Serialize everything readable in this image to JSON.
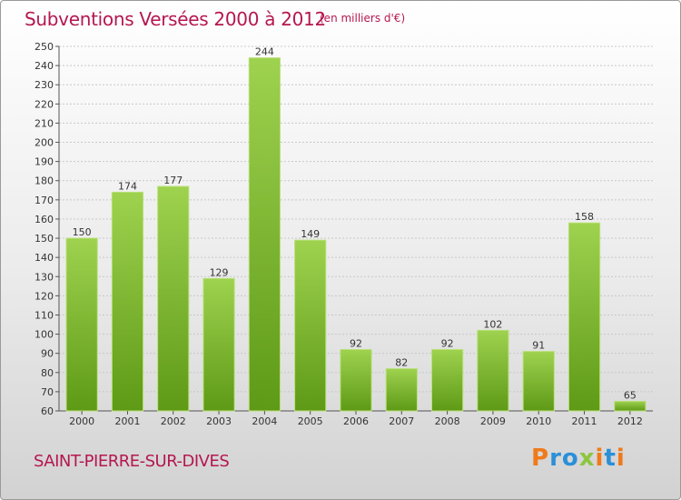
{
  "header": {
    "title": "Subventions Versées 2000 à 2012",
    "unit": "(en milliers d'€)"
  },
  "footer": {
    "commune": "SAINT-PIERRE-SUR-DIVES",
    "logo_text": "Proxiti"
  },
  "colors": {
    "title": "#b5174f",
    "bar_top": "#9ed24f",
    "bar_bottom": "#5e9a16"
  },
  "chart_data": {
    "type": "bar",
    "title": "Subventions Versées 2000 à 2012",
    "xlabel": "",
    "ylabel": "",
    "categories": [
      "2000",
      "2001",
      "2002",
      "2003",
      "2004",
      "2005",
      "2006",
      "2007",
      "2008",
      "2009",
      "2010",
      "2011",
      "2012"
    ],
    "values": [
      150,
      174,
      177,
      129,
      244,
      149,
      92,
      82,
      92,
      102,
      91,
      158,
      65
    ],
    "ylim": [
      60,
      250
    ],
    "ytick_step": 10,
    "grid": true,
    "data_labels": true
  }
}
